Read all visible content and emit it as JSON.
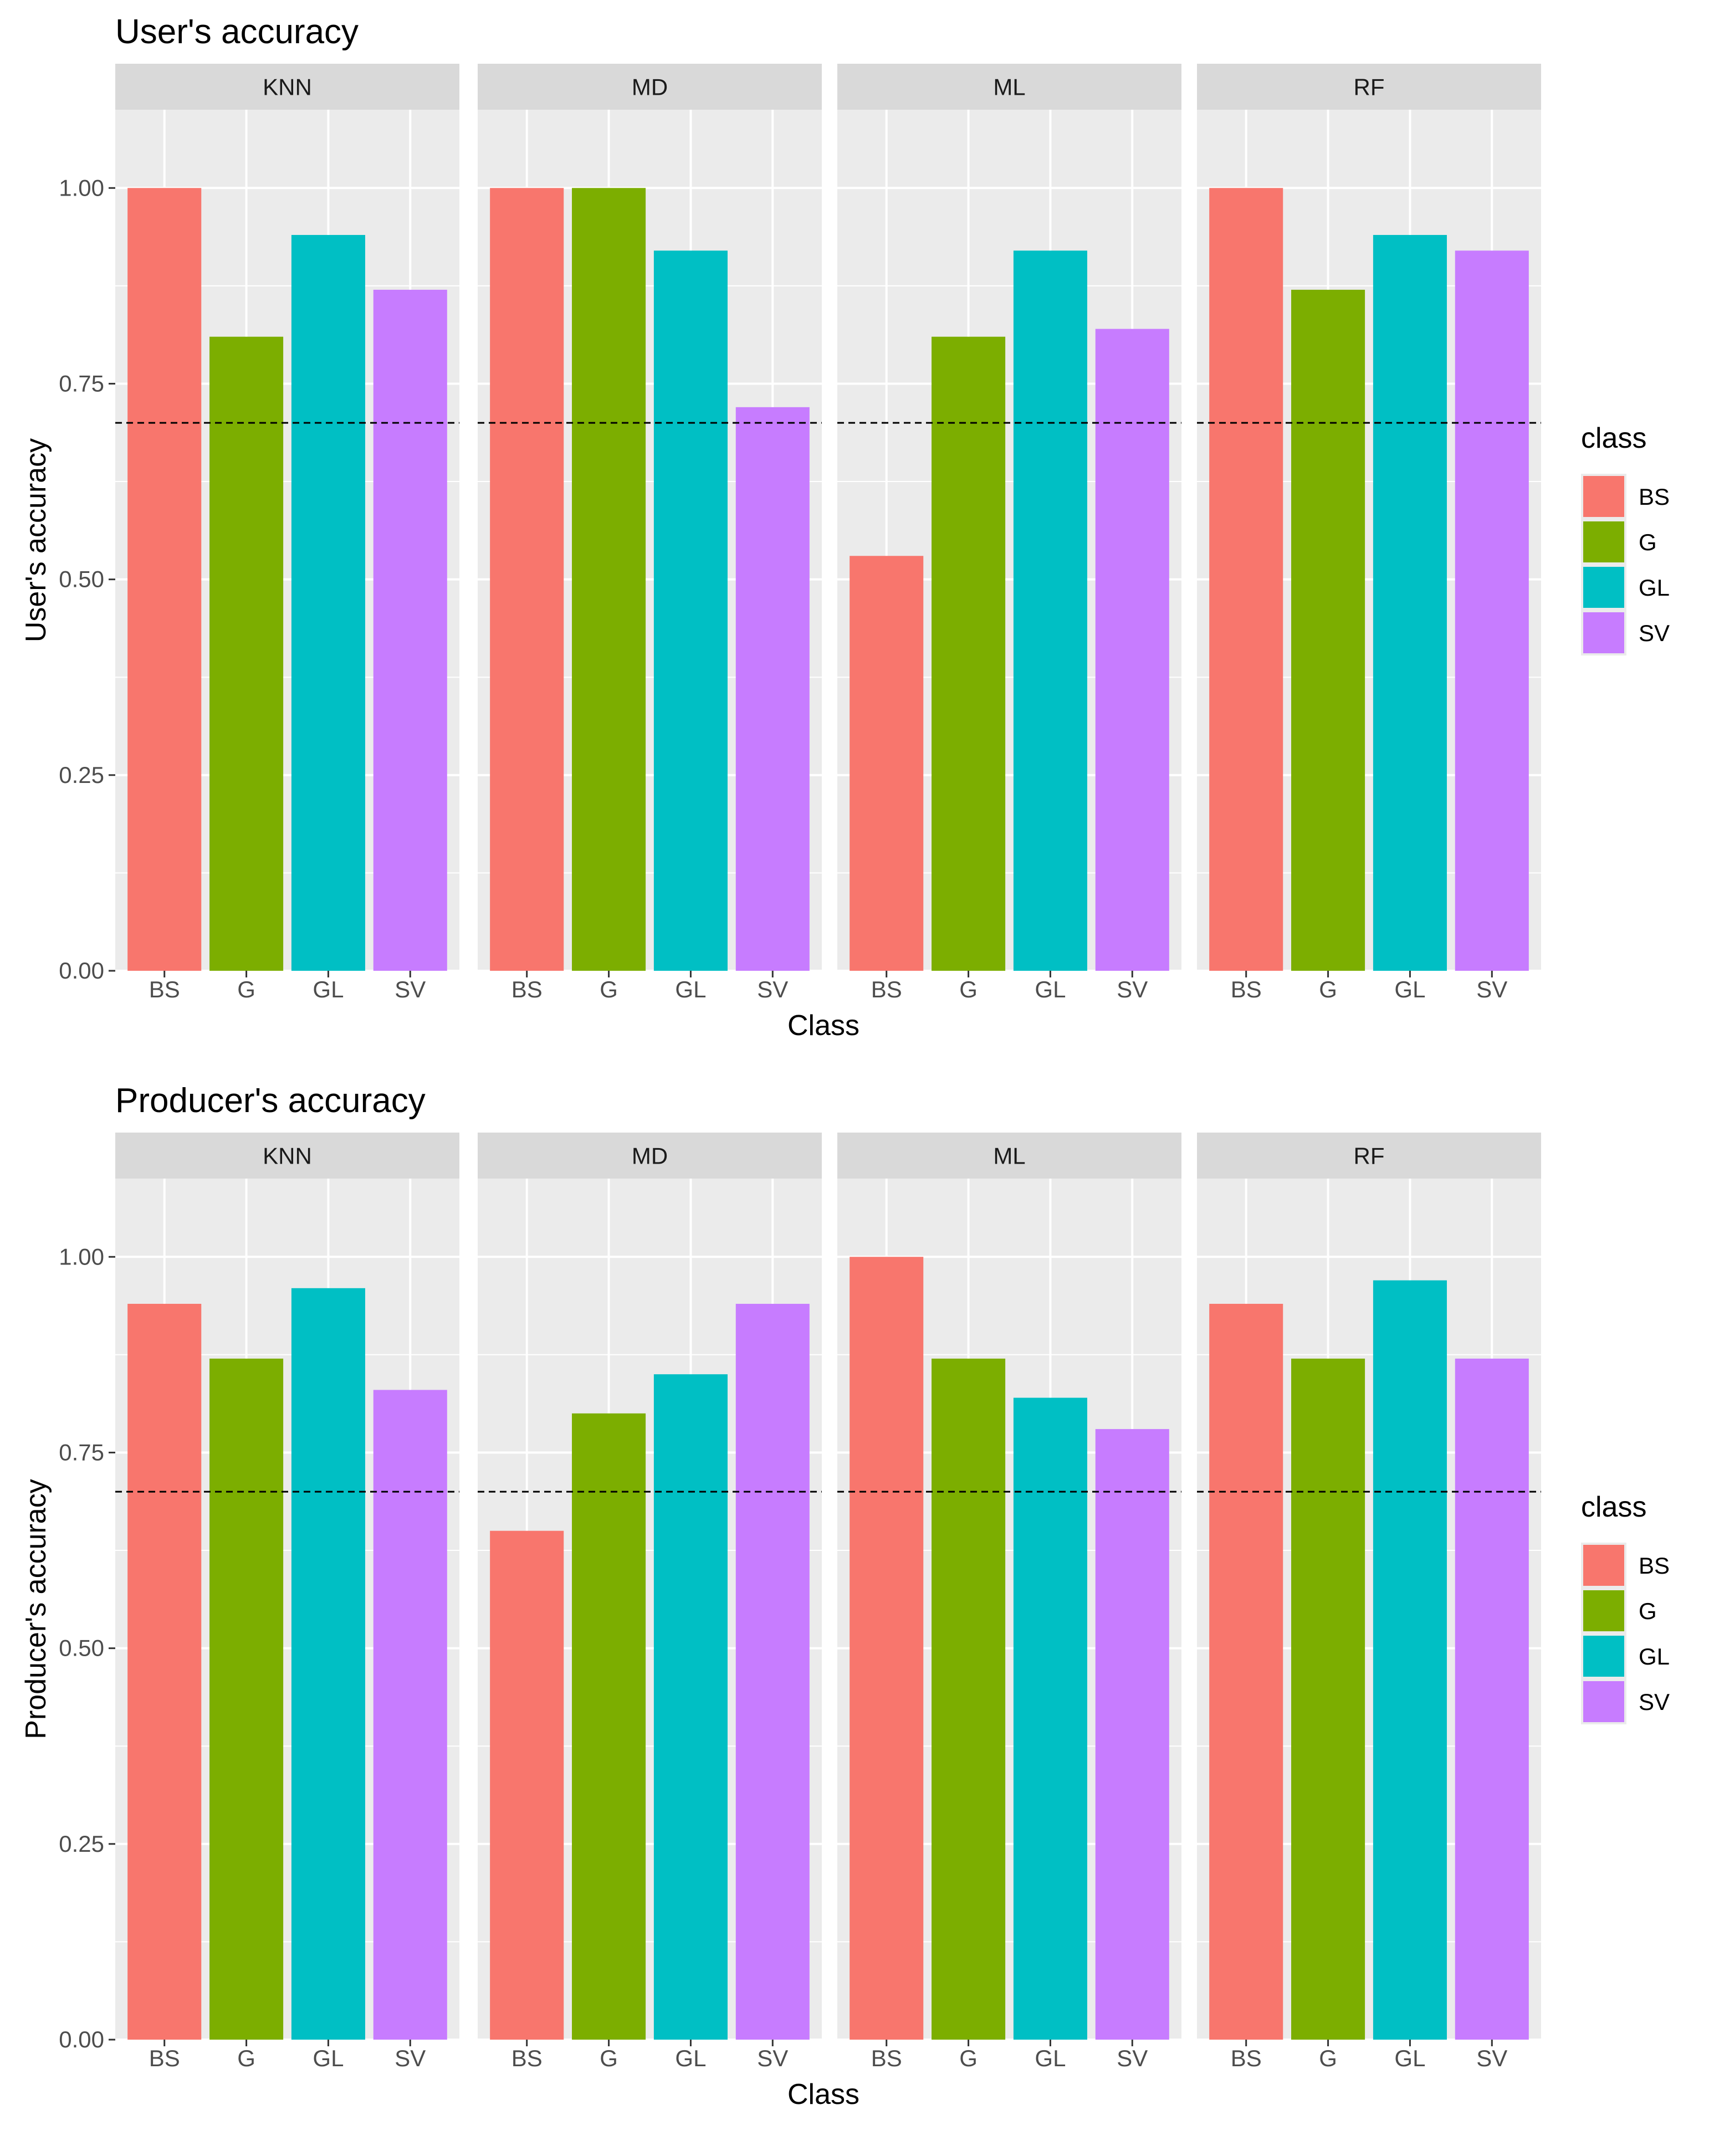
{
  "chart_data": [
    {
      "type": "bar",
      "title": "User's accuracy",
      "xlabel": "Class",
      "ylabel": "User's accuracy",
      "ylim": [
        0,
        1.1
      ],
      "yticks": [
        "0.00",
        "0.25",
        "0.50",
        "0.75",
        "1.00"
      ],
      "reference_line": 0.7,
      "legend_title": "class",
      "categories": [
        "BS",
        "G",
        "GL",
        "SV"
      ],
      "panels": [
        {
          "name": "KNN",
          "values": [
            1.0,
            0.81,
            0.94,
            0.87
          ]
        },
        {
          "name": "MD",
          "values": [
            1.0,
            1.0,
            0.92,
            0.72
          ]
        },
        {
          "name": "ML",
          "values": [
            0.53,
            0.81,
            0.92,
            0.82
          ]
        },
        {
          "name": "RF",
          "values": [
            1.0,
            0.87,
            0.94,
            0.92
          ]
        }
      ]
    },
    {
      "type": "bar",
      "title": "Producer's accuracy",
      "xlabel": "Class",
      "ylabel": "Producer's accuracy",
      "ylim": [
        0,
        1.1
      ],
      "yticks": [
        "0.00",
        "0.25",
        "0.50",
        "0.75",
        "1.00"
      ],
      "reference_line": 0.7,
      "legend_title": "class",
      "categories": [
        "BS",
        "G",
        "GL",
        "SV"
      ],
      "panels": [
        {
          "name": "KNN",
          "values": [
            0.94,
            0.87,
            0.96,
            0.83
          ]
        },
        {
          "name": "MD",
          "values": [
            0.65,
            0.8,
            0.85,
            0.94
          ]
        },
        {
          "name": "ML",
          "values": [
            1.0,
            0.87,
            0.82,
            0.78
          ]
        },
        {
          "name": "RF",
          "values": [
            0.94,
            0.87,
            0.97,
            0.87
          ]
        }
      ]
    }
  ],
  "colors": {
    "BS": "#F8766D",
    "G": "#7CAE00",
    "GL": "#00BFC4",
    "SV": "#C77CFF",
    "panel_bg": "#EBEBEB",
    "strip_bg": "#D9D9D9",
    "grid": "#FFFFFF"
  }
}
